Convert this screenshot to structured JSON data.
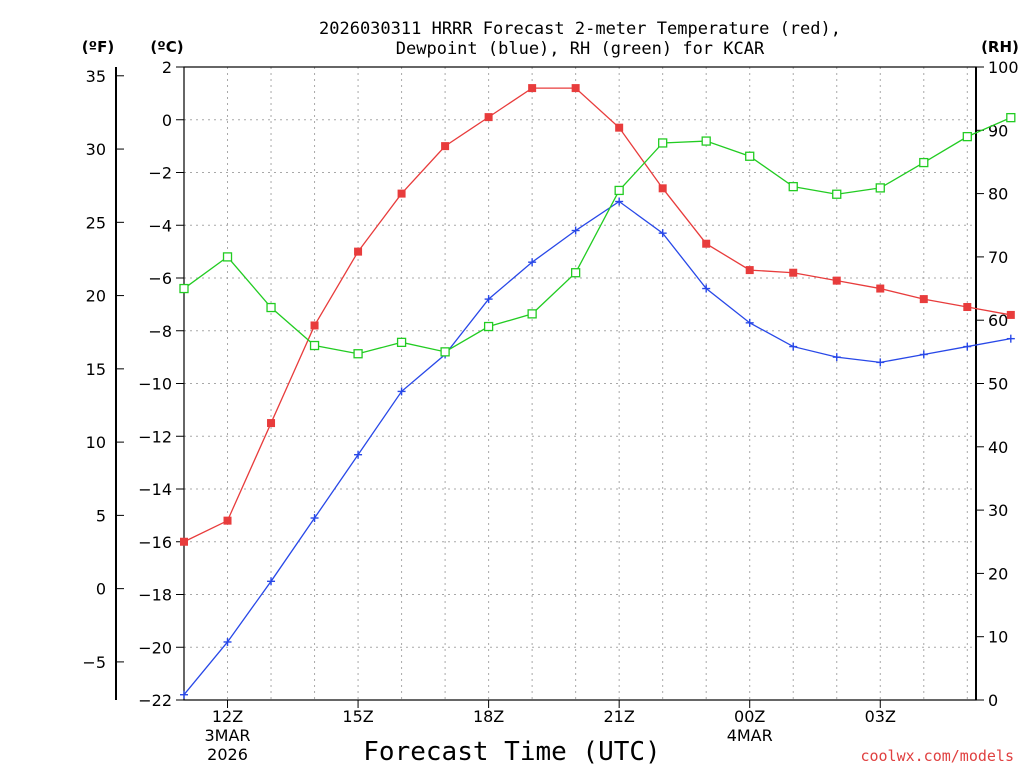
{
  "chart_data": {
    "type": "line",
    "title_line1": "2026030311 HRRR Forecast 2-meter Temperature (red),",
    "title_line2": "Dewpoint (blue), RH (green) for KCAR",
    "xlabel": "Forecast Time (UTC)",
    "credit": "coolwx.com/models",
    "units": {
      "fahrenheit": "(ºF)",
      "celsius": "(ºC)",
      "rh": "(RH)"
    },
    "x_hours": [
      0,
      1,
      2,
      3,
      4,
      5,
      6,
      7,
      8,
      9,
      10,
      11,
      12,
      13,
      14,
      15,
      16,
      17,
      18,
      19
    ],
    "x_range": [
      0,
      18.2
    ],
    "x_ticks": [
      {
        "hour": 1,
        "label": "12Z",
        "sub1": "3MAR",
        "sub2": "2026"
      },
      {
        "hour": 4,
        "label": "15Z",
        "sub1": "",
        "sub2": ""
      },
      {
        "hour": 7,
        "label": "18Z",
        "sub1": "",
        "sub2": ""
      },
      {
        "hour": 10,
        "label": "21Z",
        "sub1": "",
        "sub2": ""
      },
      {
        "hour": 13,
        "label": "00Z",
        "sub1": "4MAR",
        "sub2": ""
      },
      {
        "hour": 16,
        "label": "03Z",
        "sub1": "",
        "sub2": ""
      }
    ],
    "c_axis": {
      "range": [
        -22,
        2
      ],
      "ticks": [
        -22,
        -20,
        -18,
        -16,
        -14,
        -12,
        -10,
        -8,
        -6,
        -4,
        -2,
        0,
        2
      ],
      "labels": [
        "−22",
        "−20",
        "−18",
        "−16",
        "−14",
        "−12",
        "−10",
        "−8",
        "−6",
        "−4",
        "−2",
        "0",
        "2"
      ]
    },
    "f_axis": {
      "ticks": [
        -5,
        0,
        5,
        10,
        15,
        20,
        25,
        30,
        35
      ],
      "labels": [
        "−5",
        "0",
        "5",
        "10",
        "15",
        "20",
        "25",
        "30",
        "35"
      ]
    },
    "rh_axis": {
      "range": [
        0,
        100
      ],
      "ticks": [
        0,
        10,
        20,
        30,
        40,
        50,
        60,
        70,
        80,
        90,
        100
      ],
      "labels": [
        "0",
        "10",
        "20",
        "30",
        "40",
        "50",
        "60",
        "70",
        "80",
        "90",
        "100"
      ]
    },
    "grid": true,
    "series": [
      {
        "name": "Temperature (°C)",
        "color": "#e83c3c",
        "marker": "filled-square",
        "values": [
          -16.0,
          -15.2,
          -11.5,
          -7.8,
          -5.0,
          -2.8,
          -1.0,
          0.1,
          1.2,
          1.2,
          -0.3,
          -2.6,
          -4.7,
          -5.7,
          -5.8,
          -6.1,
          -6.4,
          -6.8,
          -7.1,
          -7.4
        ]
      },
      {
        "name": "Dewpoint (°C)",
        "color": "#2848e8",
        "marker": "plus",
        "values": [
          -21.8,
          -19.8,
          -17.5,
          -15.1,
          -12.7,
          -10.3,
          -8.9,
          -6.8,
          -5.4,
          -4.2,
          -3.1,
          -4.3,
          -6.4,
          -7.7,
          -8.6,
          -9.0,
          -9.2,
          -8.9,
          -8.6,
          -8.3
        ]
      },
      {
        "name": "RH (%)",
        "color": "#22cc22",
        "marker": "open-square",
        "values": [
          65.0,
          70.0,
          62.0,
          56.0,
          54.7,
          56.5,
          55.0,
          59.0,
          61.0,
          67.5,
          80.5,
          88.0,
          88.3,
          85.9,
          81.1,
          79.9,
          80.9,
          84.9,
          89.0,
          92.0
        ]
      }
    ]
  }
}
